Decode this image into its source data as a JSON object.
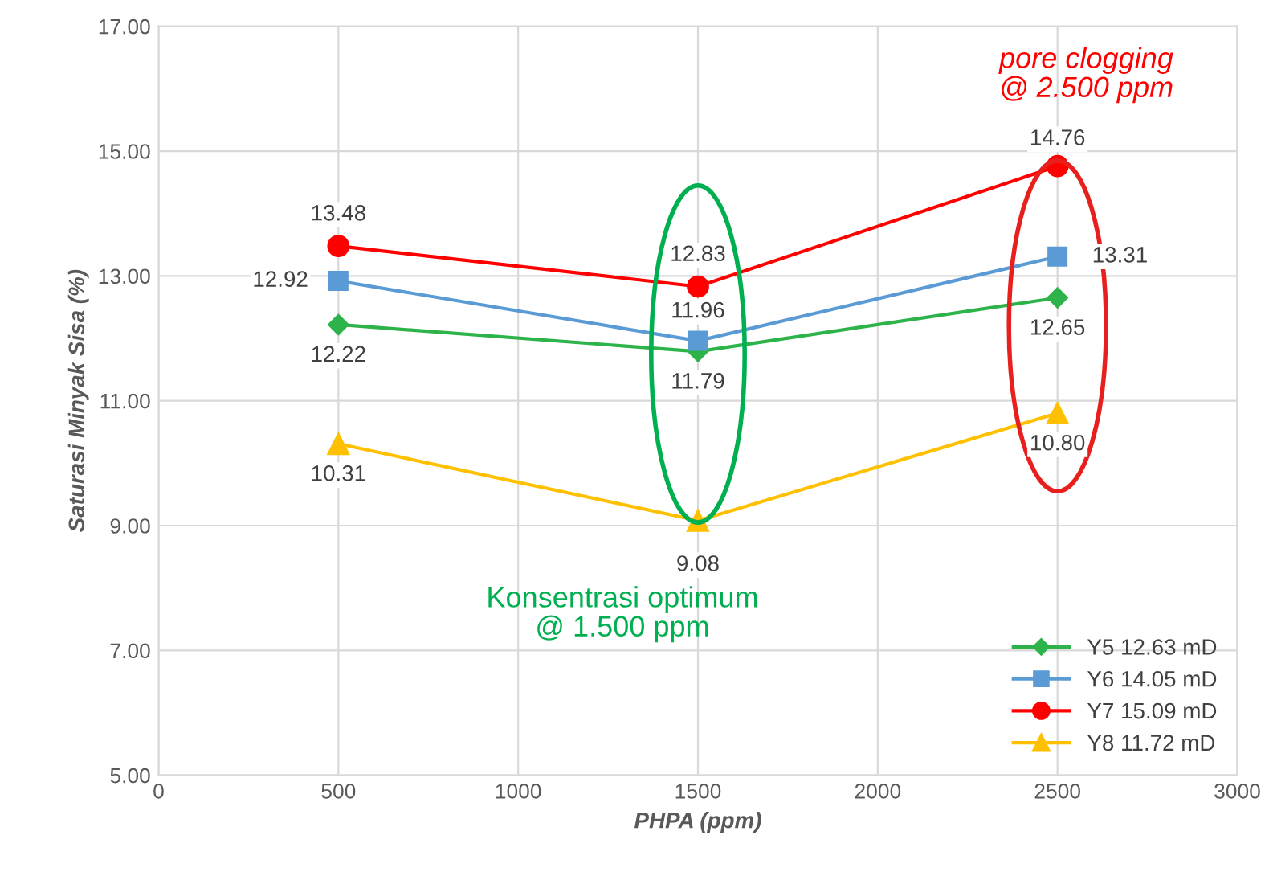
{
  "chart_data": {
    "type": "line",
    "xlabel": "PHPA (ppm)",
    "ylabel": "Saturasi Minyak Sisa (%)",
    "x": [
      500,
      1500,
      2500
    ],
    "series": [
      {
        "name": "Y5 12.63 mD",
        "color": "#2db34a",
        "marker": "diamond",
        "values": [
          12.22,
          11.79,
          12.65
        ],
        "value_labels": [
          "12.22",
          "11.79",
          "12.65"
        ]
      },
      {
        "name": "Y6 14.05 mD",
        "color": "#5b9bd5",
        "marker": "square",
        "values": [
          12.92,
          11.96,
          13.31
        ],
        "value_labels": [
          "12.92",
          "11.96",
          "13.31"
        ]
      },
      {
        "name": "Y7 15.09 mD",
        "color": "#ff0000",
        "marker": "circle",
        "values": [
          13.48,
          12.83,
          14.76
        ],
        "value_labels": [
          "13.48",
          "12.83",
          "14.76"
        ]
      },
      {
        "name": "Y8 11.72 mD",
        "color": "#ffc000",
        "marker": "triangle",
        "values": [
          10.31,
          9.08,
          10.8
        ],
        "value_labels": [
          "10.31",
          "9.08",
          "10.80"
        ]
      }
    ],
    "xlim": [
      0,
      3000
    ],
    "xticks": [
      0,
      500,
      1000,
      1500,
      2000,
      2500,
      3000
    ],
    "ylim": [
      5,
      17
    ],
    "yticks": [
      {
        "value": 5,
        "label": "5.00"
      },
      {
        "value": 7,
        "label": "7.00"
      },
      {
        "value": 9,
        "label": "9.00"
      },
      {
        "value": 11,
        "label": "11.00"
      },
      {
        "value": 13,
        "label": "13.00"
      },
      {
        "value": 15,
        "label": "15.00"
      },
      {
        "value": 17,
        "label": "17.00"
      }
    ],
    "annotations": [
      "pore clogging\n@ 2.500 ppm",
      "Konsentrasi optimum\n@ 1.500 ppm"
    ],
    "grid": true,
    "legend": "bottom right",
    "line_style": "solid"
  }
}
